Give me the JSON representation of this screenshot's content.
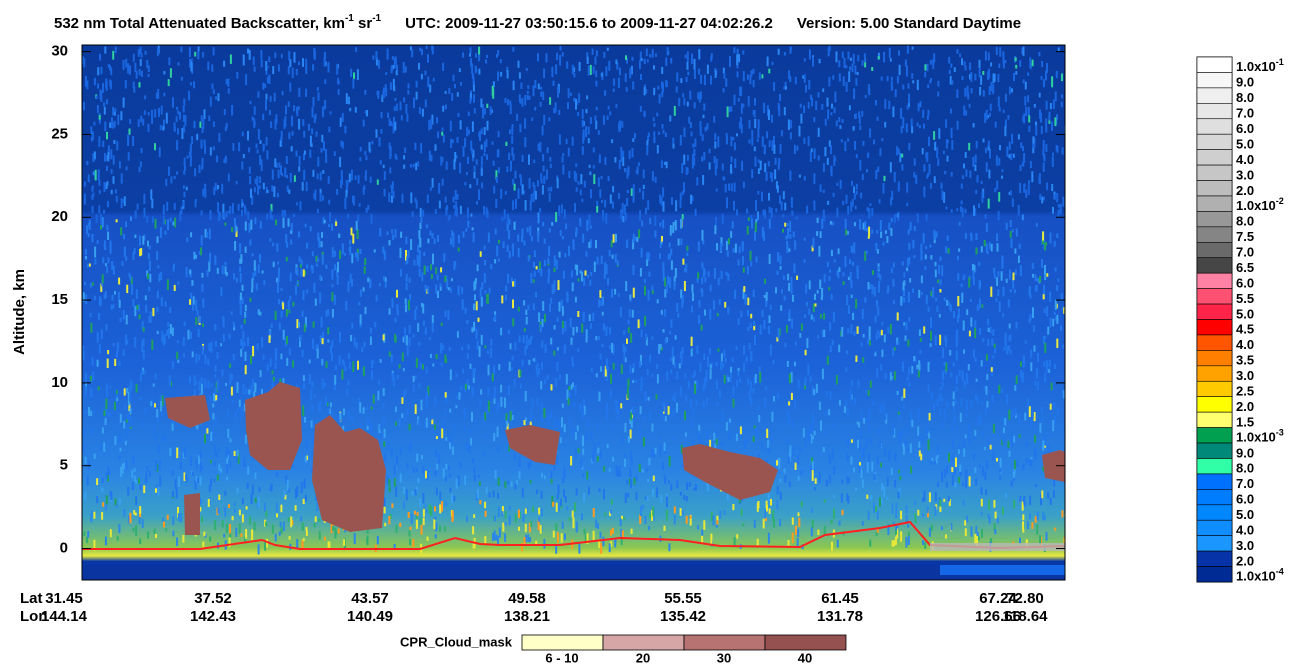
{
  "chart_data": {
    "type": "curtain",
    "title_parts": [
      "532 nm Total Attenuated Backscatter, km",
      "-1",
      " sr",
      "-1"
    ],
    "time_range": "UTC:  2009-11-27 03:50:15.6  to  2009-11-27 04:02:26.2",
    "version": "Version: 5.00  Standard  Daytime",
    "y_label": "Altitude, km",
    "ylim": [
      -1.9,
      30.4
    ],
    "yticks": [
      0,
      5,
      10,
      15,
      20,
      25,
      30
    ],
    "x_rows": [
      {
        "name": "Lat",
        "labels": [
          "31.45",
          "37.52",
          "43.57",
          "49.58",
          "55.55",
          "61.45",
          "67.24",
          "72.80"
        ]
      },
      {
        "name": "Lon",
        "labels": [
          "144.14",
          "142.43",
          "140.49",
          "138.21",
          "135.42",
          "131.78",
          "126.66",
          "118.64"
        ]
      }
    ],
    "colorbar": {
      "labels": [
        {
          "text": "1.0x10",
          "sup": "-1"
        },
        "9.0",
        "8.0",
        "7.0",
        "6.0",
        "5.0",
        "4.0",
        "3.0",
        "2.0",
        {
          "text": "1.0x10",
          "sup": "-2"
        },
        "8.0",
        "7.5",
        "7.0",
        "6.5",
        "6.0",
        "5.5",
        "5.0",
        "4.5",
        "4.0",
        "3.5",
        "3.0",
        "2.5",
        "2.0",
        "1.5",
        {
          "text": "1.0x10",
          "sup": "-3"
        },
        "9.0",
        "8.0",
        "7.0",
        "6.0",
        "5.0",
        "4.0",
        "3.0",
        "2.0",
        {
          "text": "1.0x10",
          "sup": "-4"
        }
      ],
      "colors": [
        "#ffffff",
        "#f7f7f7",
        "#efefef",
        "#e7e7e7",
        "#dfdfdf",
        "#d7d7d7",
        "#cfcfcf",
        "#c6c6c6",
        "#bdbdbd",
        "#b0b0b0",
        "#989898",
        "#858585",
        "#6a6a6a",
        "#464646",
        "#ff82a4",
        "#ff5272",
        "#ff2448",
        "#ff0000",
        "#ff5400",
        "#ff8000",
        "#ffa200",
        "#ffca00",
        "#ffff00",
        "#ffff70",
        "#00a050",
        "#008878",
        "#30ffa8",
        "#0070ff",
        "#007cff",
        "#0086ff",
        "#108eff",
        "#1c96ff",
        "#0634a8",
        "#002a94"
      ]
    },
    "cloud_mask": {
      "title": "CPR_Cloud_mask",
      "labels": [
        "6 - 10",
        "20",
        "30",
        "40"
      ],
      "colors": [
        "#ffffc8",
        "#d6a6a6",
        "#b77272",
        "#955050"
      ]
    }
  }
}
